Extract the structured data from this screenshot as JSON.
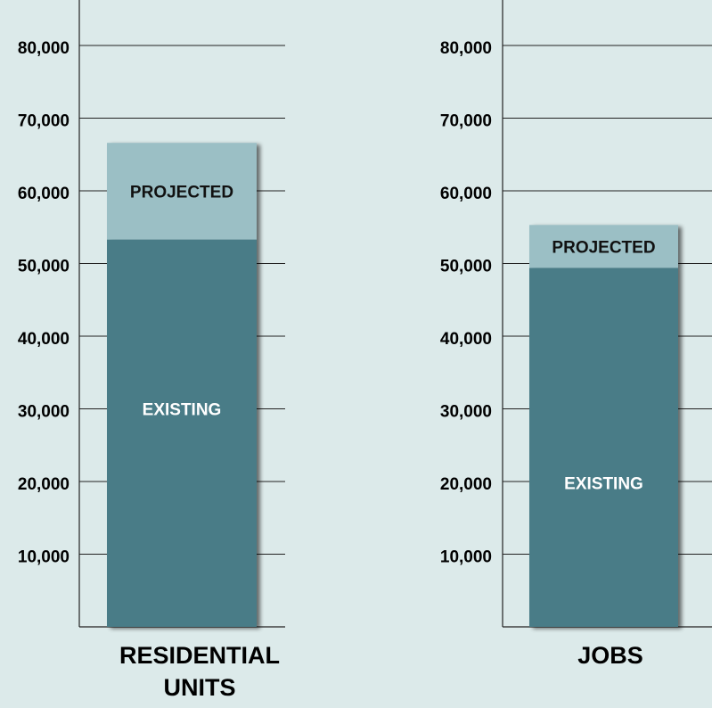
{
  "colors": {
    "background": "#dceaea",
    "existing": "#4a7c87",
    "projected": "#9bbfc5",
    "grid": "#222222",
    "text": "#000000",
    "segment_label_existing": "#ffffff",
    "segment_label_projected": "#111111"
  },
  "chart_data": [
    {
      "type": "bar",
      "stacked": true,
      "categories": [
        "RESIDENTIAL UNITS"
      ],
      "category_label_lines": [
        "RESIDENTIAL",
        "UNITS"
      ],
      "series": [
        {
          "name": "EXISTING",
          "values": [
            53300
          ]
        },
        {
          "name": "PROJECTED",
          "values": [
            13300
          ]
        }
      ],
      "segment_labels": [
        "EXISTING",
        "PROJECTED"
      ],
      "y_ticks": [
        10000,
        20000,
        30000,
        40000,
        50000,
        60000,
        70000,
        80000
      ],
      "y_tick_labels": [
        "10,000",
        "20,000",
        "30,000",
        "40,000",
        "50,000",
        "60,000",
        "70,000",
        "80,000"
      ],
      "ylim": [
        0,
        85000
      ],
      "grid": true,
      "legend": "none"
    },
    {
      "type": "bar",
      "stacked": true,
      "categories": [
        "JOBS"
      ],
      "category_label_lines": [
        "JOBS"
      ],
      "series": [
        {
          "name": "EXISTING",
          "values": [
            49400
          ]
        },
        {
          "name": "PROJECTED",
          "values": [
            5900
          ]
        }
      ],
      "segment_labels": [
        "EXISTING",
        "PROJECTED"
      ],
      "y_ticks": [
        10000,
        20000,
        30000,
        40000,
        50000,
        60000,
        70000,
        80000
      ],
      "y_tick_labels": [
        "10,000",
        "20,000",
        "30,000",
        "40,000",
        "50,000",
        "60,000",
        "70,000",
        "80,000"
      ],
      "ylim": [
        0,
        85000
      ],
      "grid": true,
      "legend": "none"
    }
  ]
}
